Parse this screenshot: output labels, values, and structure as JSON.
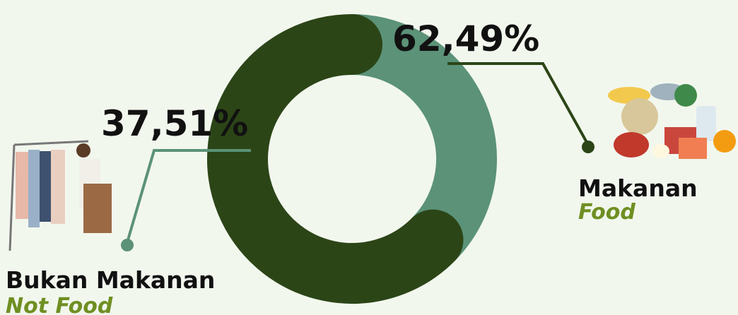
{
  "chart_data": {
    "type": "donut",
    "categories": [
      "Makanan",
      "Bukan Makanan"
    ],
    "categories_en": [
      "Food",
      "Not Food"
    ],
    "values": [
      62.49,
      37.51
    ],
    "value_labels": [
      "62,49%",
      "37,51%"
    ],
    "colors": [
      "#2c4517",
      "#5b9278"
    ],
    "subtitle_color": "#6f8f22"
  }
}
